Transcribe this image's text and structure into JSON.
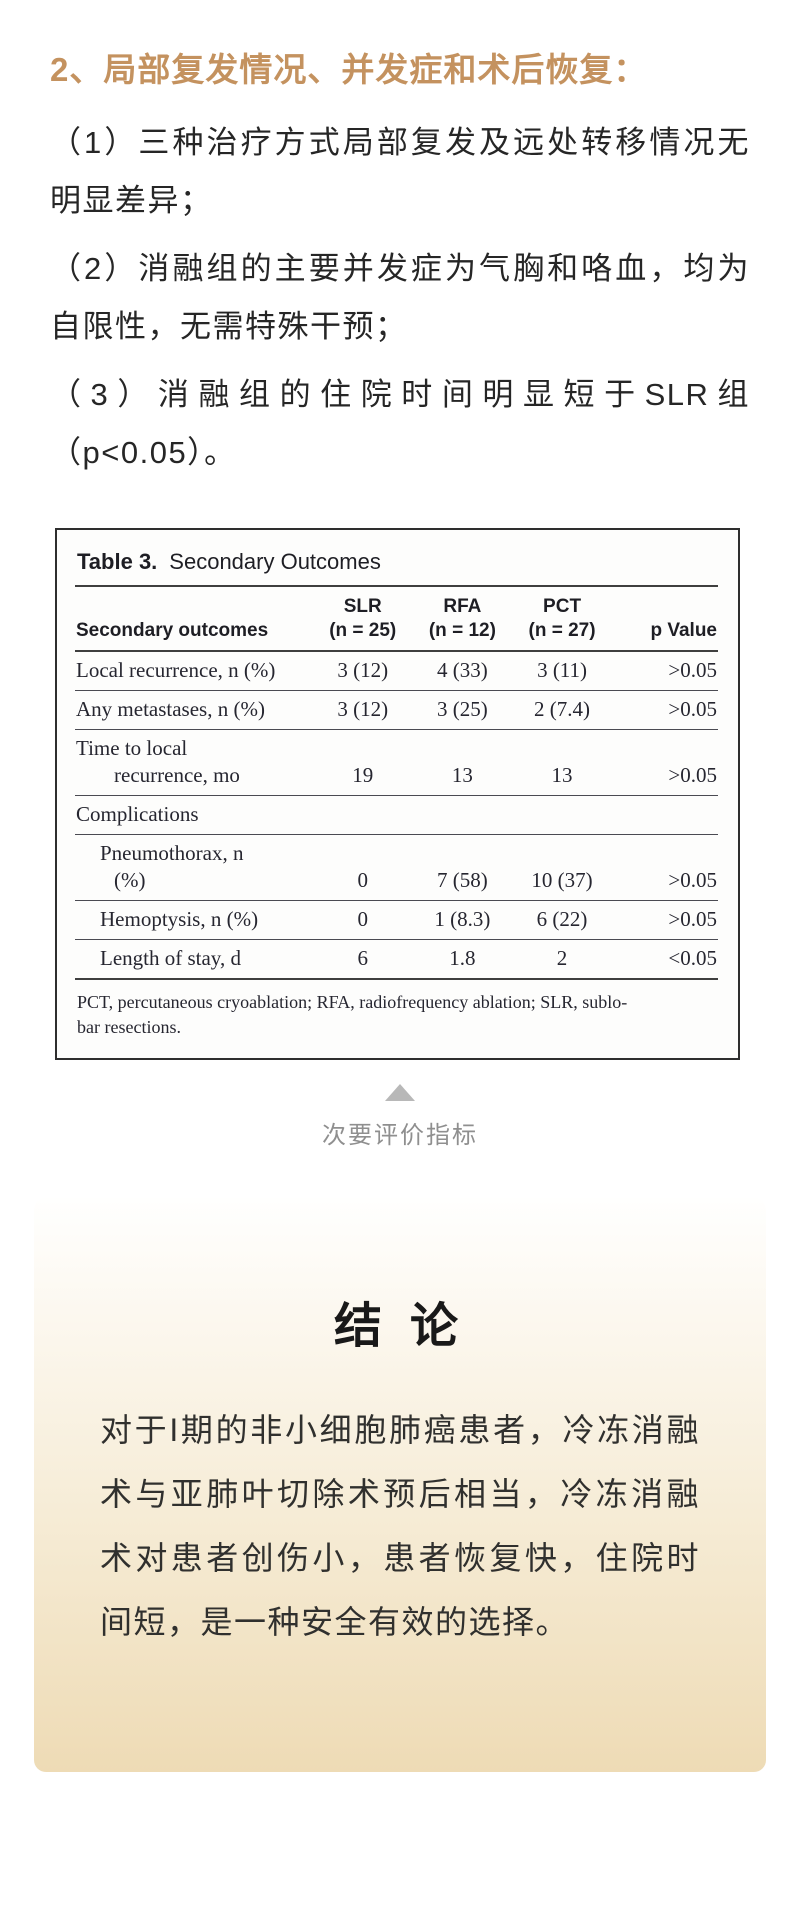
{
  "intro": {
    "heading": "2、局部复发情况、并发症和术后恢复：",
    "paragraphs": [
      "（1）三种治疗方式局部复发及远处转移情况无明显差异；",
      "（2）消融组的主要并发症为气胸和咯血，均为自限性，无需特殊干预；",
      "（3）消融组的住院时间明显短于SLR组（p<0.05）。"
    ]
  },
  "table": {
    "title_bold": "Table 3.",
    "title_rest": "Secondary Outcomes",
    "header": {
      "label_col": "Secondary outcomes",
      "groups": [
        {
          "name": "SLR",
          "n": "(n = 25)"
        },
        {
          "name": "RFA",
          "n": "(n = 12)"
        },
        {
          "name": "PCT",
          "n": "(n = 27)"
        }
      ],
      "p_col": "p Value"
    },
    "rows": [
      {
        "label": "Local recurrence, n (%)",
        "slr": "3 (12)",
        "rfa": "4 (33)",
        "pct": "3 (11)",
        "p": ">0.05"
      },
      {
        "label": "Any metastases, n (%)",
        "slr": "3 (12)",
        "rfa": "3 (25)",
        "pct": "2 (7.4)",
        "p": ">0.05"
      },
      {
        "label": "Time to local",
        "label2": "recurrence, mo",
        "slr": "19",
        "rfa": "13",
        "pct": "13",
        "p": ">0.05"
      },
      {
        "label": "Complications",
        "slr": "",
        "rfa": "",
        "pct": "",
        "p": ""
      },
      {
        "label": "Pneumothorax, n",
        "label2": "(%)",
        "slr": "0",
        "rfa": "7 (58)",
        "pct": "10 (37)",
        "p": ">0.05"
      },
      {
        "label": "Hemoptysis, n (%)",
        "slr": "0",
        "rfa": "1 (8.3)",
        "pct": "6 (22)",
        "p": ">0.05"
      },
      {
        "label": "Length of stay, d",
        "slr": "6",
        "rfa": "1.8",
        "pct": "2",
        "p": "<0.05"
      }
    ],
    "footnote_line1": "PCT, percutaneous cryoablation; RFA, radiofrequency ablation; SLR, sublo-",
    "footnote_line2": "bar resections."
  },
  "caption": "次要评价指标",
  "conclusion": {
    "title": "结 论",
    "body": "对于I期的非小细胞肺癌患者，冷冻消融术与亚肺叶切除术预后相当，冷冻消融术对患者创伤小，患者恢复快，住院时间短，是一种安全有效的选择。"
  },
  "colors": {
    "heading_accent": "#c4925f",
    "caption_gray": "#8f8f8f",
    "triangle_gray": "#b8b8b8",
    "card_gradient_top": "#fffffe",
    "card_gradient_bottom": "#eedbb5",
    "body_text": "#262626",
    "scan_text": "#26262e"
  }
}
